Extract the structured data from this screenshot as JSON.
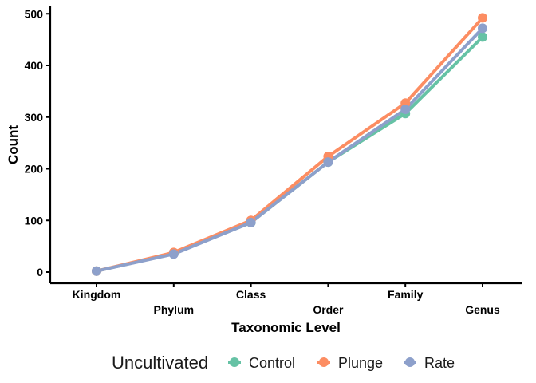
{
  "chart_data": {
    "type": "line",
    "title": "",
    "xlabel": "Taxonomic Level",
    "ylabel": "Count",
    "categories": [
      "Kingdom",
      "Phylum",
      "Class",
      "Order",
      "Family",
      "Genus"
    ],
    "ylim": [
      -20,
      515
    ],
    "yticks": [
      0,
      100,
      200,
      300,
      400,
      500
    ],
    "grid": false,
    "legend": {
      "title": "Uncultivated",
      "placement": "bottom"
    },
    "series": [
      {
        "name": "Control",
        "color": "#66c2a5",
        "values": [
          2,
          36,
          96,
          213,
          307,
          455
        ]
      },
      {
        "name": "Plunge",
        "color": "#fc8d62",
        "values": [
          2,
          38,
          100,
          224,
          327,
          492
        ]
      },
      {
        "name": "Rate",
        "color": "#8da0cb",
        "values": [
          2,
          35,
          96,
          213,
          315,
          472
        ]
      }
    ]
  }
}
